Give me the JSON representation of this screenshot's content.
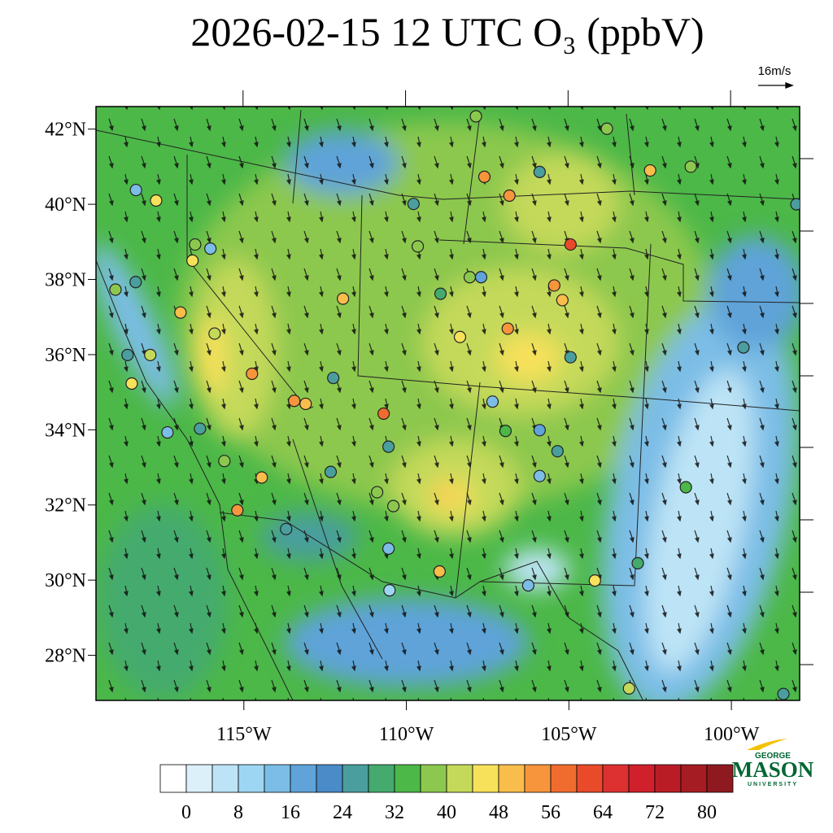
{
  "map": {
    "title": "2026-02-15 12 UTC O₃ (ppbV)",
    "vector_reference": "16m/s",
    "xlim": [
      -119.55,
      -97.9
    ],
    "ylim": [
      26.8,
      42.6
    ],
    "lat_ticks": [
      {
        "value": 42,
        "label": "42°N"
      },
      {
        "value": 40,
        "label": "40°N"
      },
      {
        "value": 38,
        "label": "38°N"
      },
      {
        "value": 36,
        "label": "36°N"
      },
      {
        "value": 34,
        "label": "34°N"
      },
      {
        "value": 32,
        "label": "32°N"
      },
      {
        "value": 30,
        "label": "30°N"
      },
      {
        "value": 28,
        "label": "28°N"
      }
    ],
    "lon_ticks": [
      {
        "value": -115,
        "label": "115°W"
      },
      {
        "value": -110,
        "label": "110°W"
      },
      {
        "value": -105,
        "label": "105°W"
      },
      {
        "value": -100,
        "label": "100°W"
      }
    ],
    "colorbar": {
      "colors": [
        "#ffffff",
        "#dcf0fa",
        "#bde4f6",
        "#9dd6f2",
        "#7bbde6",
        "#5fa3d9",
        "#4a8bc8",
        "#4a9e9e",
        "#44aa6e",
        "#4cb848",
        "#8cc84e",
        "#c4d95a",
        "#f8e15a",
        "#f9bd4b",
        "#f7953d",
        "#f06c2e",
        "#e84a2a",
        "#dd3131",
        "#d0202b",
        "#b91c25",
        "#a51c22",
        "#8e1a1f"
      ],
      "ticks": [
        0,
        8,
        16,
        24,
        32,
        40,
        48,
        56,
        64,
        72,
        80
      ]
    },
    "stations": [
      {
        "lon": -107.86,
        "lat": 42.34,
        "value": 36
      },
      {
        "lon": -118.32,
        "lat": 40.38,
        "value": 12
      },
      {
        "lon": -117.7,
        "lat": 40.1,
        "value": 44
      },
      {
        "lon": -107.6,
        "lat": 40.73,
        "value": 52
      },
      {
        "lon": -106.83,
        "lat": 40.23,
        "value": 52
      },
      {
        "lon": -105.9,
        "lat": 40.86,
        "value": 26
      },
      {
        "lon": -102.5,
        "lat": 40.9,
        "value": 48
      },
      {
        "lon": -101.25,
        "lat": 41.0,
        "value": 36
      },
      {
        "lon": -104.95,
        "lat": 38.93,
        "value": 60
      },
      {
        "lon": -109.78,
        "lat": 40.01,
        "value": 24
      },
      {
        "lon": -109.65,
        "lat": 38.88,
        "value": 36
      },
      {
        "lon": -116.03,
        "lat": 38.82,
        "value": 14
      },
      {
        "lon": -116.5,
        "lat": 38.93,
        "value": 36
      },
      {
        "lon": -116.58,
        "lat": 38.5,
        "value": 44
      },
      {
        "lon": -118.33,
        "lat": 37.93,
        "value": 24
      },
      {
        "lon": -118.95,
        "lat": 37.73,
        "value": 38
      },
      {
        "lon": -116.95,
        "lat": 37.12,
        "value": 48
      },
      {
        "lon": -115.9,
        "lat": 36.56,
        "value": 42
      },
      {
        "lon": -114.75,
        "lat": 35.49,
        "value": 54
      },
      {
        "lon": -113.45,
        "lat": 34.77,
        "value": 52
      },
      {
        "lon": -113.1,
        "lat": 34.69,
        "value": 48
      },
      {
        "lon": -110.7,
        "lat": 34.43,
        "value": 58
      },
      {
        "lon": -112.25,
        "lat": 35.38,
        "value": 26
      },
      {
        "lon": -111.95,
        "lat": 37.49,
        "value": 48
      },
      {
        "lon": -108.95,
        "lat": 37.62,
        "value": 28
      },
      {
        "lon": -108.05,
        "lat": 38.06,
        "value": 36
      },
      {
        "lon": -107.7,
        "lat": 38.06,
        "value": 18
      },
      {
        "lon": -108.35,
        "lat": 36.47,
        "value": 44
      },
      {
        "lon": -106.88,
        "lat": 36.69,
        "value": 52
      },
      {
        "lon": -105.45,
        "lat": 37.84,
        "value": 52
      },
      {
        "lon": -105.2,
        "lat": 37.45,
        "value": 48
      },
      {
        "lon": -104.95,
        "lat": 35.93,
        "value": 26
      },
      {
        "lon": -107.35,
        "lat": 34.75,
        "value": 14
      },
      {
        "lon": -106.95,
        "lat": 33.97,
        "value": 34
      },
      {
        "lon": -105.9,
        "lat": 33.99,
        "value": 16
      },
      {
        "lon": -105.35,
        "lat": 33.43,
        "value": 26
      },
      {
        "lon": -105.9,
        "lat": 32.77,
        "value": 14
      },
      {
        "lon": -110.55,
        "lat": 33.55,
        "value": 24
      },
      {
        "lon": -110.9,
        "lat": 32.34,
        "value": 38
      },
      {
        "lon": -110.4,
        "lat": 31.97,
        "value": 36
      },
      {
        "lon": -110.55,
        "lat": 30.84,
        "value": 12
      },
      {
        "lon": -110.52,
        "lat": 29.73,
        "value": 8
      },
      {
        "lon": -108.98,
        "lat": 30.23,
        "value": 48
      },
      {
        "lon": -106.25,
        "lat": 29.86,
        "value": 12
      },
      {
        "lon": -104.2,
        "lat": 29.99,
        "value": 44
      },
      {
        "lon": -102.88,
        "lat": 30.45,
        "value": 28
      },
      {
        "lon": -101.4,
        "lat": 32.47,
        "value": 32
      },
      {
        "lon": -99.63,
        "lat": 36.19,
        "value": 26
      },
      {
        "lon": -98.0,
        "lat": 40.0,
        "value": 26
      },
      {
        "lon": -103.15,
        "lat": 27.12,
        "value": 42
      },
      {
        "lon": -98.4,
        "lat": 26.97,
        "value": 26
      },
      {
        "lon": -115.2,
        "lat": 31.86,
        "value": 52
      },
      {
        "lon": -114.45,
        "lat": 32.73,
        "value": 48
      },
      {
        "lon": -115.6,
        "lat": 33.17,
        "value": 36
      },
      {
        "lon": -116.35,
        "lat": 34.03,
        "value": 26
      },
      {
        "lon": -117.35,
        "lat": 33.93,
        "value": 14
      },
      {
        "lon": -118.45,
        "lat": 35.23,
        "value": 44
      },
      {
        "lon": -117.88,
        "lat": 35.99,
        "value": 42
      },
      {
        "lon": -118.58,
        "lat": 35.99,
        "value": 24
      },
      {
        "lon": -113.7,
        "lat": 31.36,
        "value": 26
      },
      {
        "lon": -112.33,
        "lat": 32.88,
        "value": 26
      },
      {
        "lon": -103.83,
        "lat": 42.01,
        "value": 36
      }
    ],
    "logo": {
      "top": "GEORGE",
      "main": "MASON",
      "bottom": "UNIVERSITY"
    }
  }
}
